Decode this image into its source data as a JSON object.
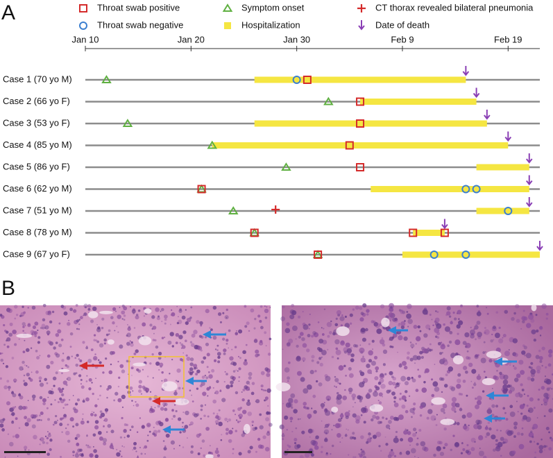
{
  "panels": [
    "A",
    "B"
  ],
  "chart_data": {
    "type": "timeline",
    "legend": [
      {
        "name": "Throat swab positive",
        "marker": "square",
        "color": "#d42a2a"
      },
      {
        "name": "Symptom onset",
        "marker": "triangle",
        "color": "#5fb041"
      },
      {
        "name": "CT thorax revealed bilateral pneumonia",
        "marker": "plus",
        "color": "#d42a2a"
      },
      {
        "name": "Throat swab negative",
        "marker": "circle",
        "color": "#3b7fd0"
      },
      {
        "name": "Hospitalization",
        "marker": "bar",
        "color": "#f5e642"
      },
      {
        "name": "Date of death",
        "marker": "arrow",
        "color": "#8a3fb5"
      }
    ],
    "xlim": [
      0,
      43
    ],
    "xticks": [
      {
        "value": 0,
        "label": "Jan 10"
      },
      {
        "value": 10,
        "label": "Jan 20"
      },
      {
        "value": 20,
        "label": "Jan 30"
      },
      {
        "value": 30,
        "label": "Feb 9"
      },
      {
        "value": 40,
        "label": "Feb 19"
      }
    ],
    "rows": [
      {
        "label": "Case 1 (70 yo M)",
        "hospitalization": [
          16,
          36
        ],
        "symptom_onset": [
          2
        ],
        "positive": [
          21
        ],
        "negative": [
          20
        ],
        "ct": [],
        "death": [
          36
        ]
      },
      {
        "label": "Case 2 (66 yo F)",
        "hospitalization": [
          26,
          37
        ],
        "symptom_onset": [
          23
        ],
        "positive": [
          26
        ],
        "negative": [],
        "ct": [],
        "death": [
          37
        ]
      },
      {
        "label": "Case 3 (53 yo F)",
        "hospitalization": [
          16,
          38
        ],
        "symptom_onset": [
          4
        ],
        "positive": [
          26
        ],
        "negative": [],
        "ct": [],
        "death": [
          38
        ]
      },
      {
        "label": "Case 4 (85 yo M)",
        "hospitalization": [
          12,
          40
        ],
        "symptom_onset": [
          12
        ],
        "positive": [
          25
        ],
        "negative": [],
        "ct": [],
        "death": [
          40
        ]
      },
      {
        "label": "Case 5 (86 yo F)",
        "hospitalization": [
          37,
          42
        ],
        "symptom_onset": [
          19
        ],
        "positive": [
          26
        ],
        "negative": [],
        "ct": [],
        "death": [
          42
        ]
      },
      {
        "label": "Case 6 (62 yo M)",
        "hospitalization": [
          27,
          42
        ],
        "symptom_onset": [
          11
        ],
        "positive": [
          11
        ],
        "negative": [
          36,
          37
        ],
        "ct": [],
        "death": [
          42
        ]
      },
      {
        "label": "Case 7 (51 yo M)",
        "hospitalization": [
          37,
          42
        ],
        "symptom_onset": [
          14
        ],
        "positive": [],
        "negative": [
          40
        ],
        "ct": [
          18
        ],
        "death": [
          42
        ]
      },
      {
        "label": "Case 8 (78 yo M)",
        "hospitalization": [
          31,
          34
        ],
        "symptom_onset": [
          16
        ],
        "positive": [
          16,
          31,
          34
        ],
        "negative": [],
        "ct": [],
        "death": [
          34
        ]
      },
      {
        "label": "Case 9 (67 yo F)",
        "hospitalization": [
          30,
          43
        ],
        "symptom_onset": [
          22
        ],
        "positive": [
          22
        ],
        "negative": [
          33,
          36
        ],
        "ct": [],
        "death": [
          43
        ]
      }
    ]
  }
}
